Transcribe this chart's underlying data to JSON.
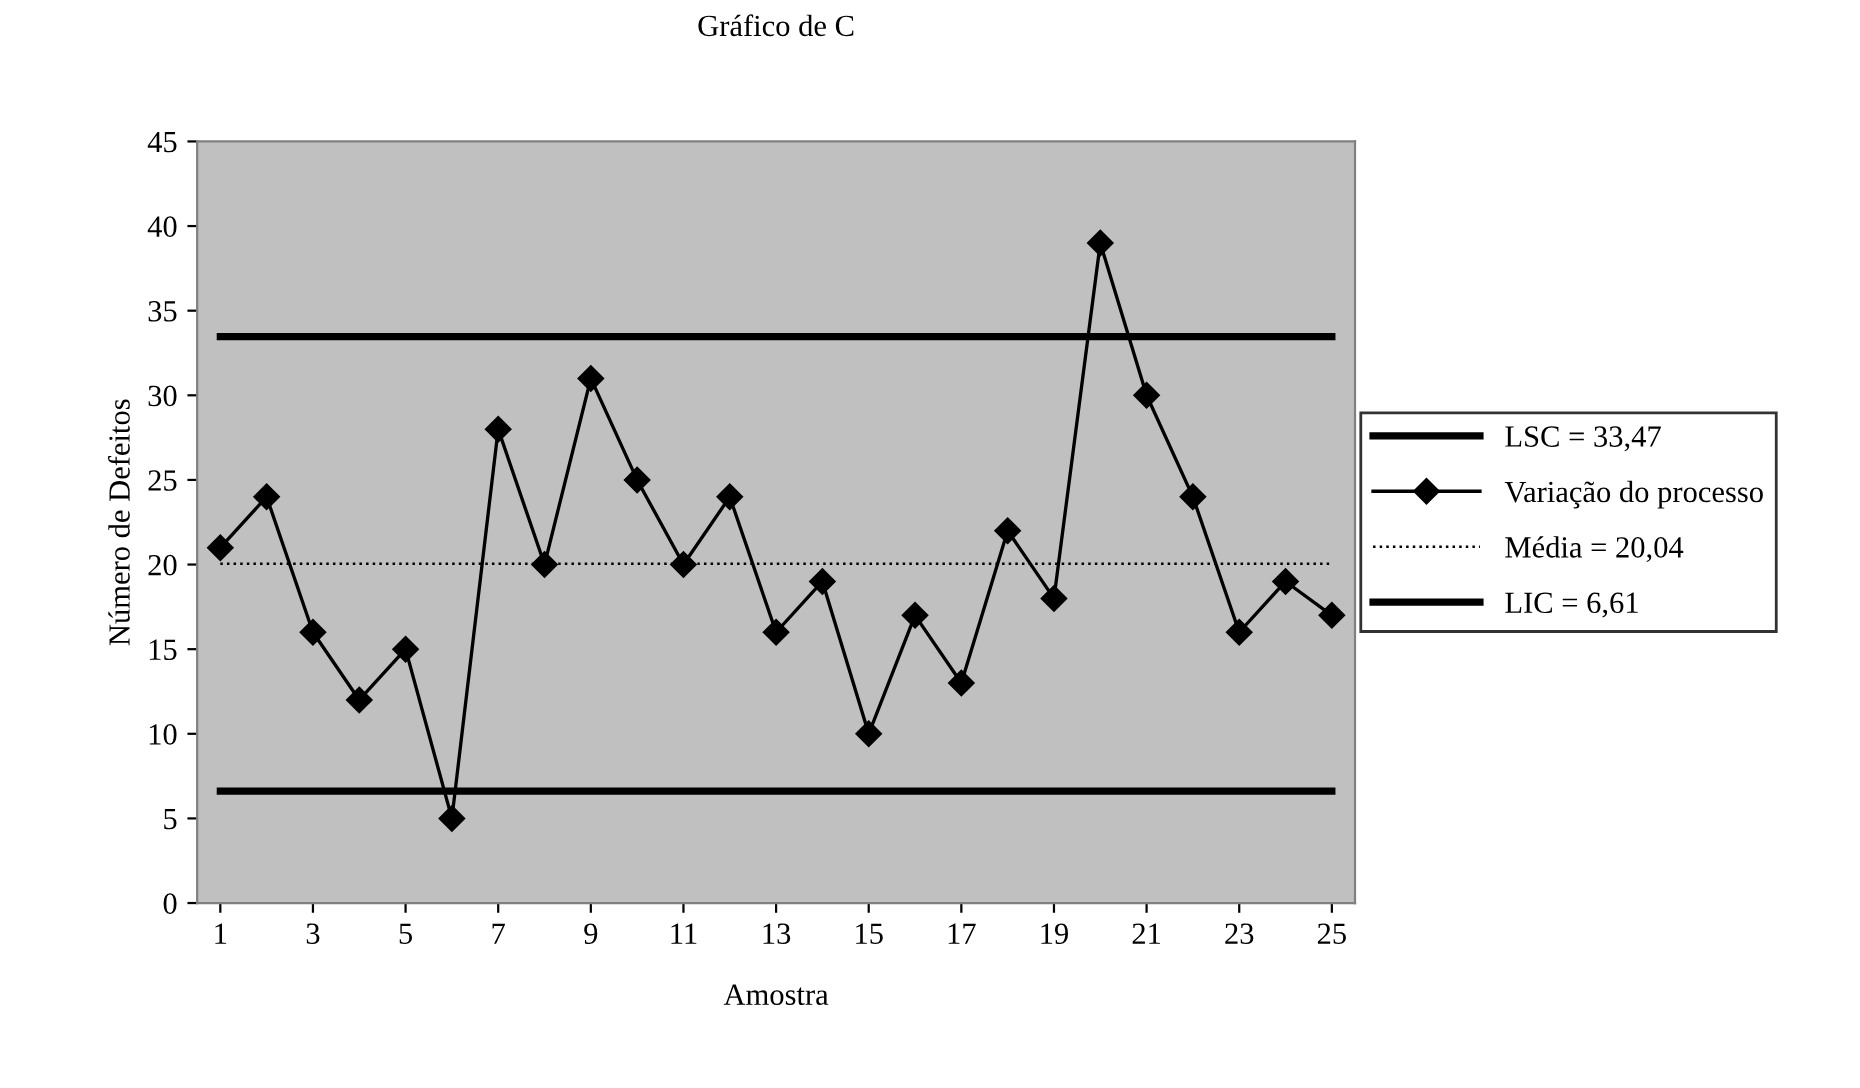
{
  "chart_data": {
    "type": "line",
    "title": "Gráfico de C",
    "xlabel": "Amostra",
    "ylabel": "Número de Defeitos",
    "x": [
      1,
      2,
      3,
      4,
      5,
      6,
      7,
      8,
      9,
      10,
      11,
      12,
      13,
      14,
      15,
      16,
      17,
      18,
      19,
      20,
      21,
      22,
      23,
      24,
      25
    ],
    "series": [
      {
        "name": "LSC = 33,47",
        "color": "#000000",
        "line_style": "solid",
        "marker": "none",
        "values": [
          33.47,
          33.47,
          33.47,
          33.47,
          33.47,
          33.47,
          33.47,
          33.47,
          33.47,
          33.47,
          33.47,
          33.47,
          33.47,
          33.47,
          33.47,
          33.47,
          33.47,
          33.47,
          33.47,
          33.47,
          33.47,
          33.47,
          33.47,
          33.47,
          33.47
        ]
      },
      {
        "name": "Variação do processo",
        "color": "#000000",
        "line_style": "solid",
        "marker": "diamond",
        "values": [
          21,
          24,
          16,
          12,
          15,
          5,
          28,
          20,
          31,
          25,
          20,
          24,
          16,
          19,
          10,
          17,
          13,
          22,
          18,
          39,
          30,
          24,
          16,
          19,
          17
        ]
      },
      {
        "name": "Média = 20,04",
        "color": "#000000",
        "line_style": "dotted",
        "marker": "none",
        "values": [
          20.04,
          20.04,
          20.04,
          20.04,
          20.04,
          20.04,
          20.04,
          20.04,
          20.04,
          20.04,
          20.04,
          20.04,
          20.04,
          20.04,
          20.04,
          20.04,
          20.04,
          20.04,
          20.04,
          20.04,
          20.04,
          20.04,
          20.04,
          20.04,
          20.04
        ]
      },
      {
        "name": "LIC = 6,61",
        "color": "#000000",
        "line_style": "solid",
        "marker": "none",
        "values": [
          6.61,
          6.61,
          6.61,
          6.61,
          6.61,
          6.61,
          6.61,
          6.61,
          6.61,
          6.61,
          6.61,
          6.61,
          6.61,
          6.61,
          6.61,
          6.61,
          6.61,
          6.61,
          6.61,
          6.61,
          6.61,
          6.61,
          6.61,
          6.61,
          6.61
        ]
      }
    ],
    "xlim": [
      0.5,
      25.5
    ],
    "xticks": [
      1,
      3,
      5,
      7,
      9,
      11,
      13,
      15,
      17,
      19,
      21,
      23,
      25
    ],
    "ylim": [
      0,
      45
    ],
    "yticks": [
      0,
      5,
      10,
      15,
      20,
      25,
      30,
      35,
      40,
      45
    ],
    "grid": false,
    "legend": "right"
  }
}
